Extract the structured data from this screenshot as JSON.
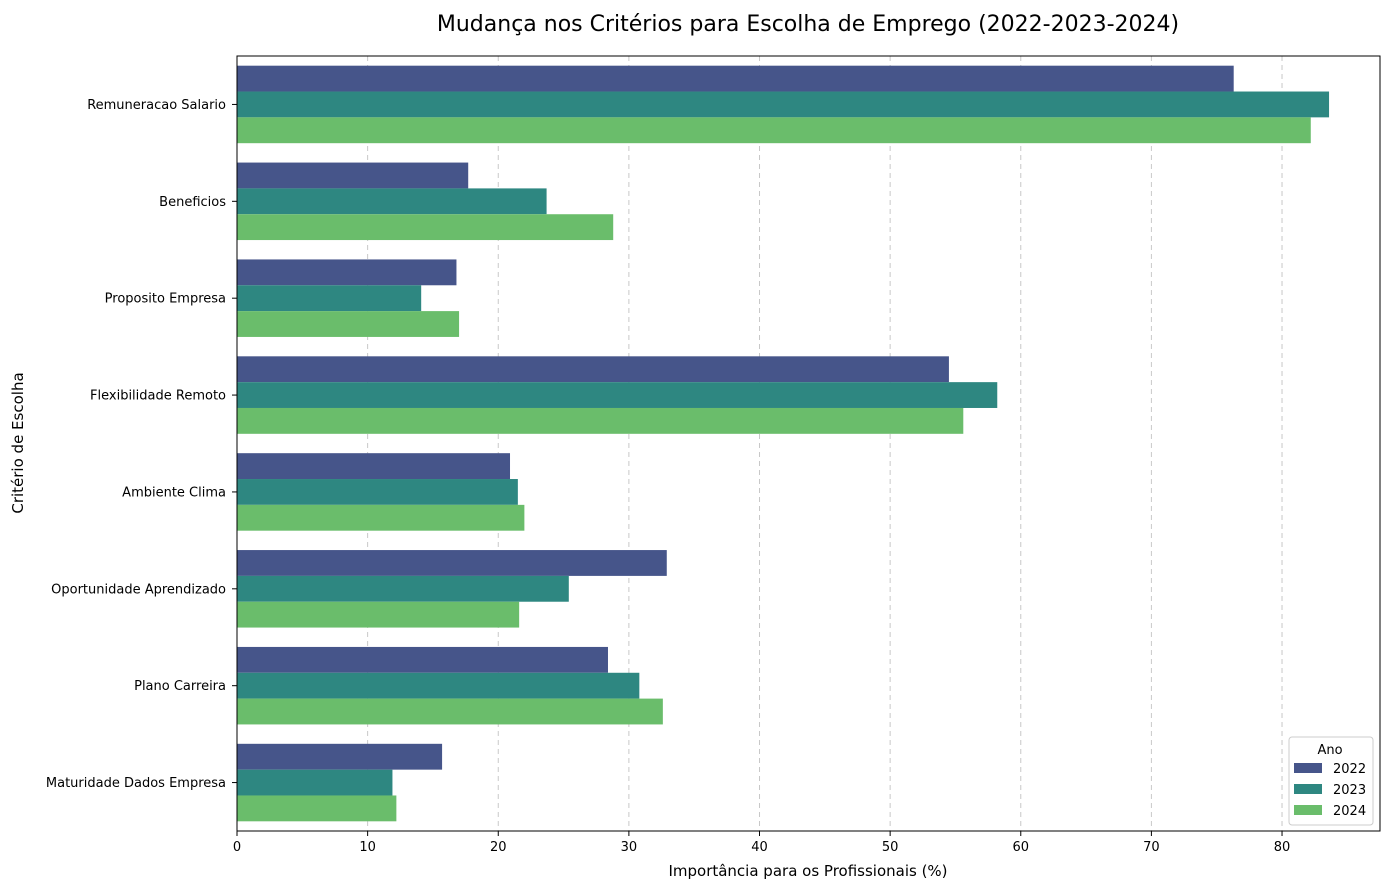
{
  "chart_data": {
    "type": "bar",
    "orientation": "horizontal",
    "title": "Mudança nos Critérios para Escolha de Emprego (2022-2023-2024)",
    "xlabel": "Importância para os Profissionais (%)",
    "ylabel": "Critério de Escolha",
    "xlim": [
      0,
      87.5
    ],
    "xticks": [
      0,
      10,
      20,
      30,
      40,
      50,
      60,
      70,
      80
    ],
    "grid": "x-dashed",
    "legend": {
      "title": "Ano",
      "position": "bottom-right"
    },
    "categories": [
      "Remuneracao Salario",
      "Beneficios",
      "Proposito Empresa",
      "Flexibilidade Remoto",
      "Ambiente Clima",
      "Oportunidade Aprendizado",
      "Plano Carreira",
      "Maturidade Dados Empresa"
    ],
    "series": [
      {
        "name": "2022",
        "color": "#46558a",
        "values": [
          76.3,
          17.7,
          16.8,
          54.5,
          20.9,
          32.9,
          28.4,
          15.7
        ]
      },
      {
        "name": "2023",
        "color": "#2e8781",
        "values": [
          83.6,
          23.7,
          14.1,
          58.2,
          21.5,
          25.4,
          30.8,
          11.9
        ]
      },
      {
        "name": "2024",
        "color": "#6abd6b",
        "values": [
          82.2,
          28.8,
          17.0,
          55.6,
          22.0,
          21.6,
          32.6,
          12.2
        ]
      }
    ]
  }
}
